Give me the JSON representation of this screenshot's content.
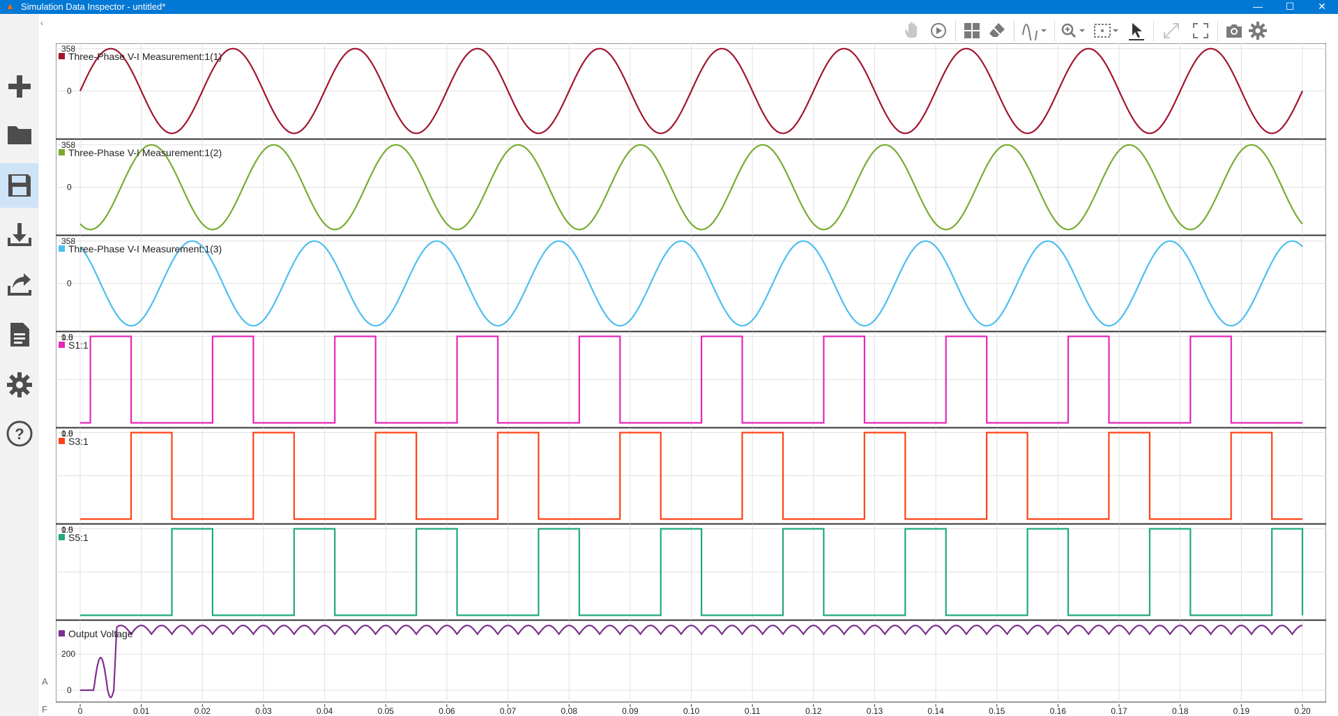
{
  "window": {
    "title": "Simulation Data Inspector - untitled*",
    "minimize": "—",
    "maximize": "☐",
    "close": "✕"
  },
  "sidebar": {
    "items": [
      {
        "name": "new-icon"
      },
      {
        "name": "open-folder-icon"
      },
      {
        "name": "save-icon",
        "active": true
      },
      {
        "name": "import-icon"
      },
      {
        "name": "export-icon"
      },
      {
        "name": "report-icon"
      },
      {
        "name": "settings-icon"
      },
      {
        "name": "help-icon"
      }
    ]
  },
  "strip": {
    "collapse": "‹",
    "a_label": "A",
    "f_label": "F"
  },
  "toolbar": {
    "items": [
      "pan-icon",
      "replay-icon",
      "layout-icon",
      "clear-icon",
      "signal-style-icon",
      "zoom-icon",
      "fit-icon",
      "cursor-icon",
      "expand-icon",
      "fullscreen-icon",
      "snapshot-icon",
      "gear-icon"
    ]
  },
  "colors": {
    "phase1": "#a2142f",
    "phase2": "#77ac30",
    "phase3": "#4dbeee",
    "s1": "#e627ba",
    "s3": "#ff4216",
    "s5": "#1fa97c",
    "output": "#7e2f8e",
    "grid": "#e0e0e0"
  },
  "chart_data": {
    "type": "line",
    "xlim": [
      0,
      0.2
    ],
    "x_ticks": [
      "0",
      "0.01",
      "0.02",
      "0.03",
      "0.04",
      "0.05",
      "0.06",
      "0.07",
      "0.08",
      "0.09",
      "0.10",
      "0.11",
      "0.12",
      "0.13",
      "0.14",
      "0.15",
      "0.16",
      "0.17",
      "0.18",
      "0.19",
      "0.20"
    ],
    "panels": [
      {
        "legend": "Three-Phase V-I Measurement:1(1)",
        "kind": "sine",
        "amplitude": 358,
        "freq": 50,
        "phase_deg": 0,
        "y_ticks": [
          "358",
          "0"
        ],
        "ylim": [
          -380,
          380
        ]
      },
      {
        "legend": "Three-Phase V-I Measurement:1(2)",
        "kind": "sine",
        "amplitude": 358,
        "freq": 50,
        "phase_deg": -120,
        "y_ticks": [
          "358",
          "0"
        ],
        "ylim": [
          -380,
          380
        ]
      },
      {
        "legend": "Three-Phase V-I Measurement:1(3)",
        "kind": "sine",
        "amplitude": 358,
        "freq": 50,
        "phase_deg": 120,
        "y_ticks": [
          "358",
          "0"
        ],
        "ylim": [
          -380,
          380
        ]
      },
      {
        "legend": "S1:1",
        "kind": "pulse",
        "high": 1,
        "low": 0,
        "period": 0.02,
        "rise": 0.00167,
        "width": 0.00667,
        "y_ticks": [
          "1.0",
          "0.5"
        ],
        "ylim": [
          -0.02,
          1.02
        ]
      },
      {
        "legend": "S3:1",
        "kind": "pulse",
        "high": 1,
        "low": 0,
        "period": 0.02,
        "rise": 0.00833,
        "width": 0.00667,
        "y_ticks": [
          "1.0",
          "0.5"
        ],
        "ylim": [
          -0.02,
          1.02
        ]
      },
      {
        "legend": "S5:1",
        "kind": "pulse",
        "high": 1,
        "low": 0,
        "period": 0.02,
        "rise": 0.015,
        "width": 0.00667,
        "y_ticks": [
          "1.0",
          "0.5"
        ],
        "ylim": [
          -0.02,
          1.02
        ]
      },
      {
        "legend": "Output Voltage",
        "kind": "rectified",
        "peak": 358,
        "ripple_min": 310,
        "y_ticks": [
          "200",
          "0"
        ],
        "ylim": [
          -50,
          370
        ]
      }
    ]
  }
}
